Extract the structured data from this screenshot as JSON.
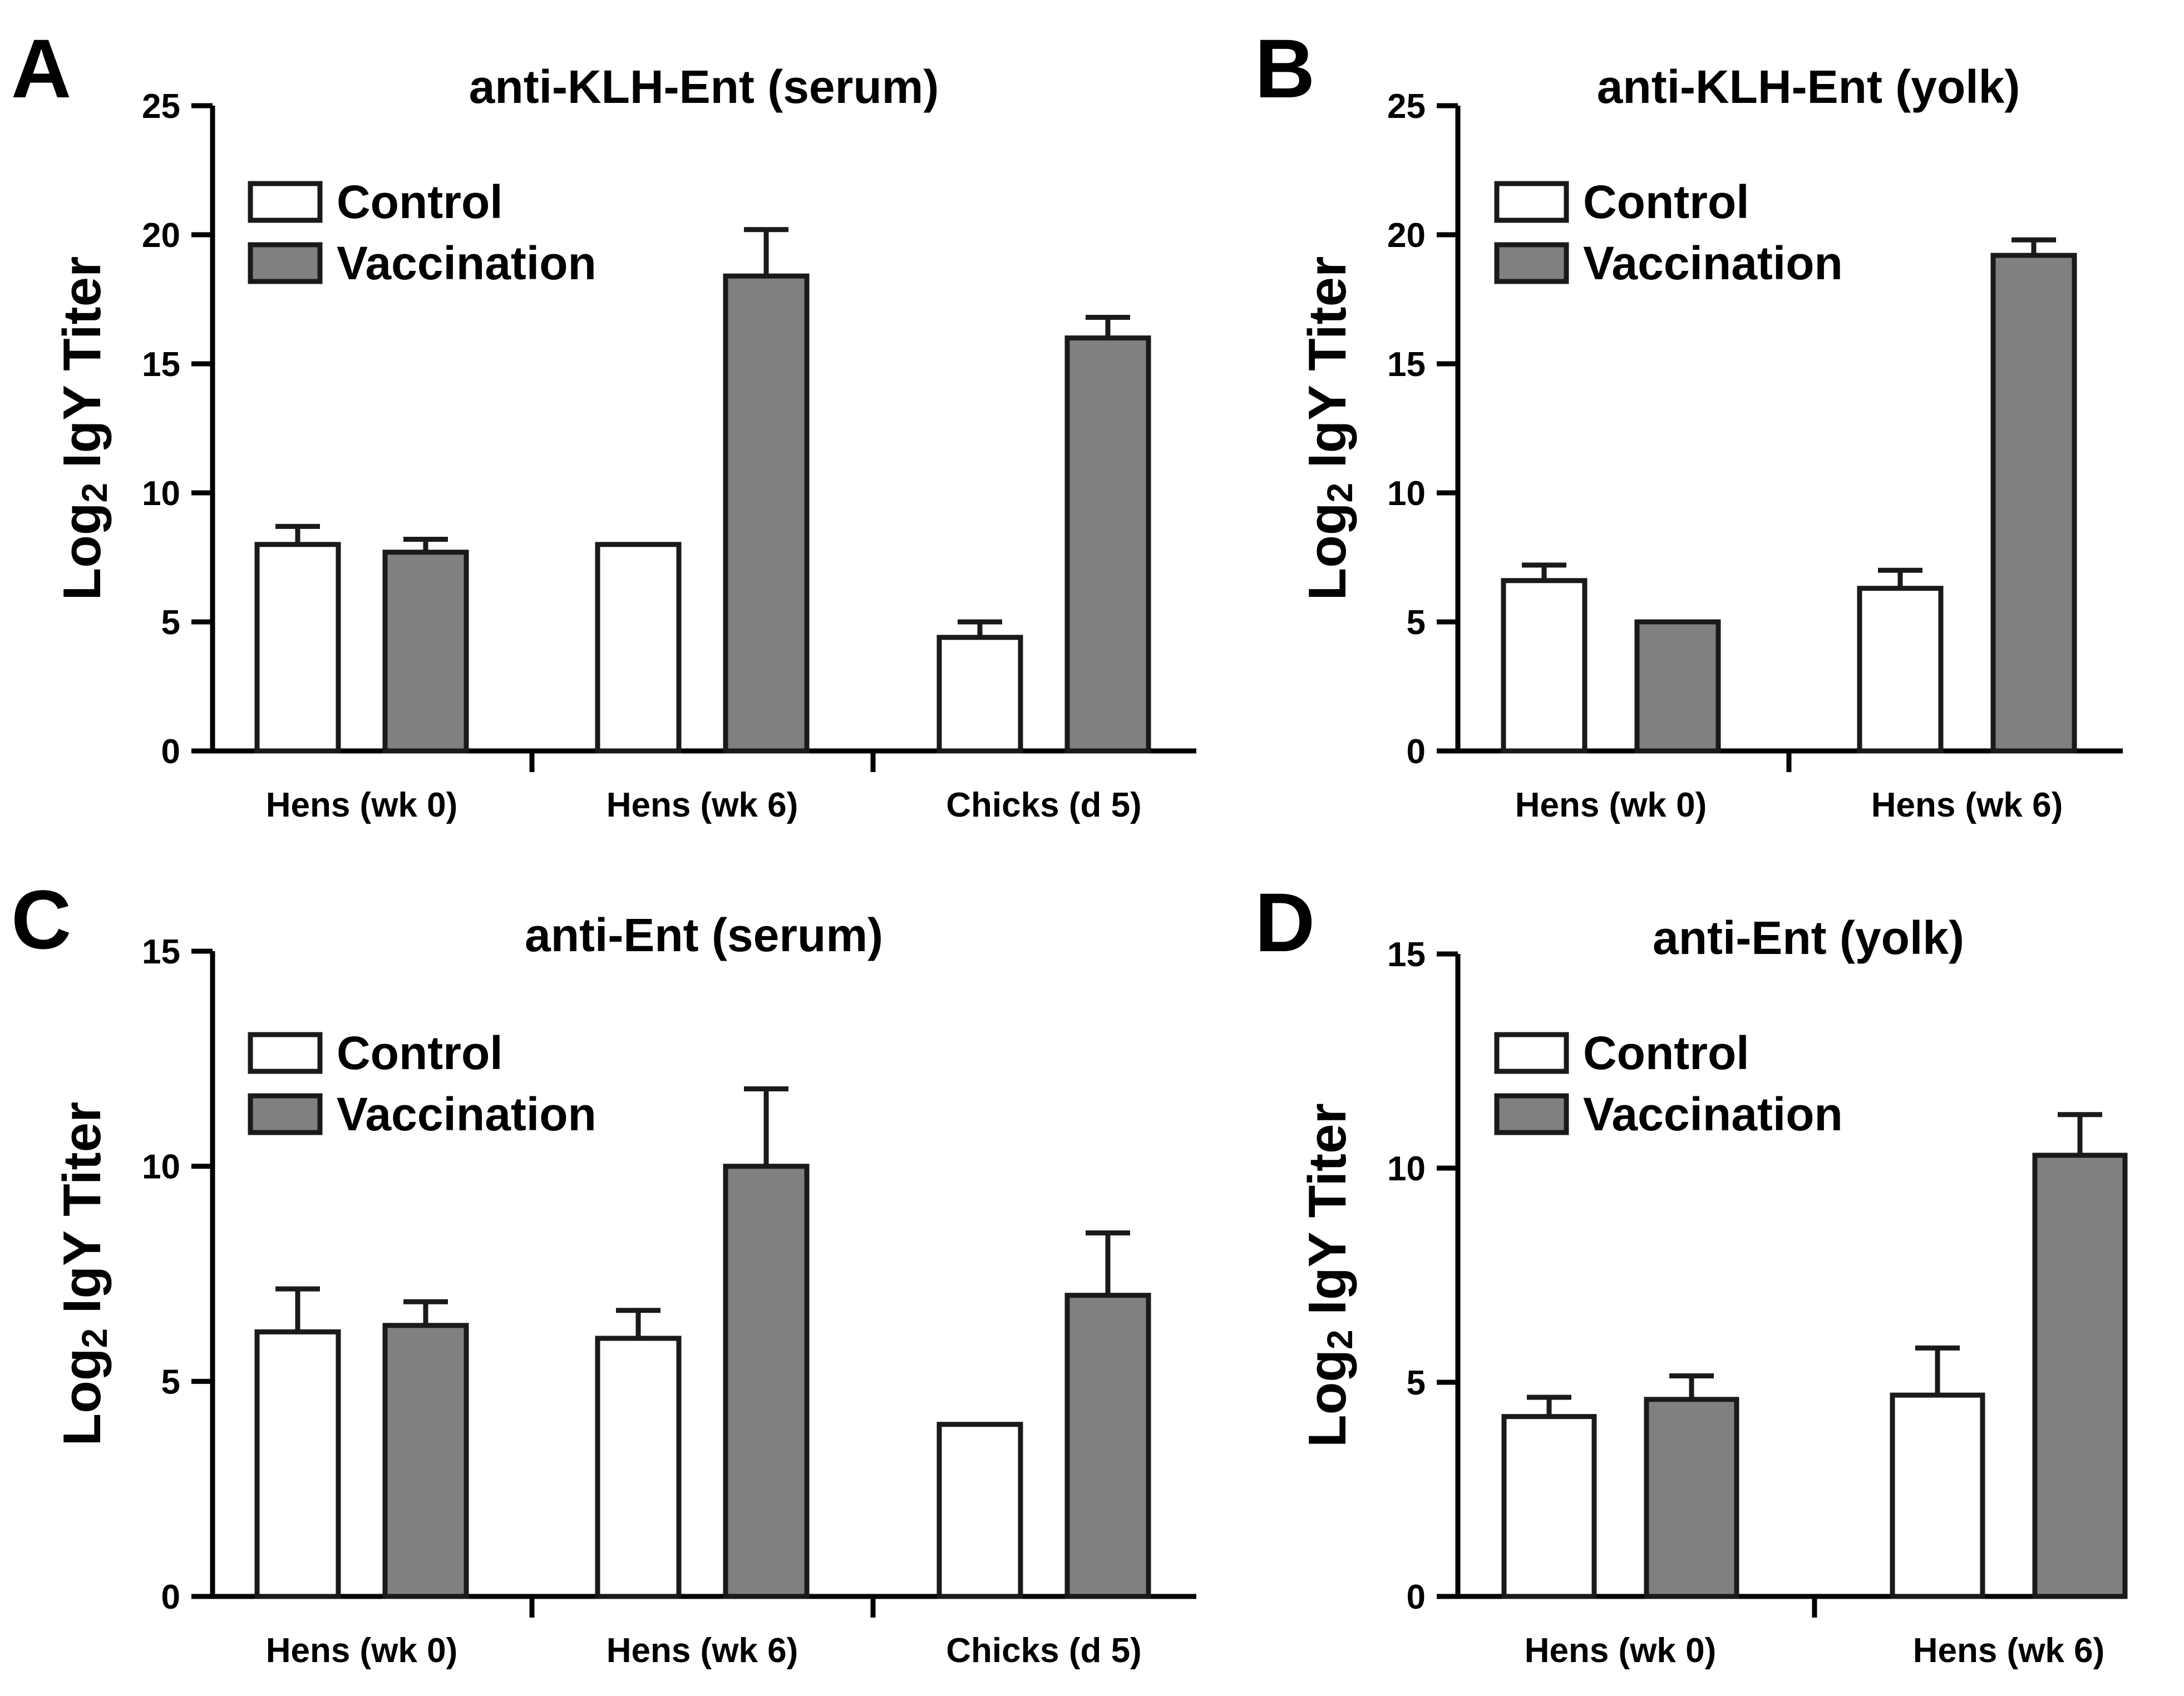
{
  "colors": {
    "control_fill": "#ffffff",
    "vaccination_fill": "#808080",
    "stroke": "#1a1a1a"
  },
  "chart_data": [
    {
      "letter": "A",
      "type": "bar",
      "title": "anti-KLH-Ent (serum)",
      "xlabel": "",
      "ylabel": "Log2 IgY Titer",
      "ylabel_main": "Log",
      "ylabel_sub": "2",
      "ylabel_rest": " IgY Titer",
      "ylim": [
        0,
        25
      ],
      "yticks": [
        0,
        5,
        10,
        15,
        20,
        25
      ],
      "ytick_labels": [
        "0",
        "5",
        "10",
        "15",
        "20",
        "25"
      ],
      "categories": [
        "Hens (wk 0)",
        "Hens (wk 6)",
        "Chicks (d 5)"
      ],
      "legend": [
        "Control",
        "Vaccination"
      ],
      "legend_position": "top-left",
      "series": [
        {
          "name": "Control",
          "values": [
            8.0,
            8.0,
            4.4
          ],
          "errors": [
            0.7,
            0.0,
            0.6
          ]
        },
        {
          "name": "Vaccination",
          "values": [
            7.7,
            18.4,
            16.0
          ],
          "errors": [
            0.5,
            1.8,
            0.8
          ]
        }
      ]
    },
    {
      "letter": "B",
      "type": "bar",
      "title": "anti-KLH-Ent (yolk)",
      "xlabel": "",
      "ylabel": "Log2 IgY Titer",
      "ylabel_main": "Log",
      "ylabel_sub": "2",
      "ylabel_rest": " IgY Titer",
      "ylim": [
        0,
        25
      ],
      "yticks": [
        0,
        5,
        10,
        15,
        20,
        25
      ],
      "ytick_labels": [
        "0",
        "5",
        "10",
        "15",
        "20",
        "25"
      ],
      "categories": [
        "Hens (wk 0)",
        "Hens (wk 6)"
      ],
      "legend": [
        "Control",
        "Vaccination"
      ],
      "legend_position": "top-left",
      "series": [
        {
          "name": "Control",
          "values": [
            6.6,
            6.3
          ],
          "errors": [
            0.6,
            0.7
          ]
        },
        {
          "name": "Vaccination",
          "values": [
            5.0,
            19.2
          ],
          "errors": [
            0.0,
            0.6
          ]
        }
      ]
    },
    {
      "letter": "C",
      "type": "bar",
      "title": "anti-Ent (serum)",
      "xlabel": "",
      "ylabel": "Log2 IgY Titer",
      "ylabel_main": "Log",
      "ylabel_sub": "2",
      "ylabel_rest": " IgY Titer",
      "ylim": [
        0,
        15
      ],
      "yticks": [
        0,
        5,
        10,
        15
      ],
      "ytick_labels": [
        "0",
        "5",
        "10",
        "15"
      ],
      "categories": [
        "Hens (wk 0)",
        "Hens (wk 6)",
        "Chicks (d 5)"
      ],
      "legend": [
        "Control",
        "Vaccination"
      ],
      "legend_position": "top-left",
      "series": [
        {
          "name": "Control",
          "values": [
            6.15,
            6.0,
            4.0
          ],
          "errors": [
            1.0,
            0.65,
            0.0
          ]
        },
        {
          "name": "Vaccination",
          "values": [
            6.3,
            10.0,
            7.0
          ],
          "errors": [
            0.55,
            1.8,
            1.45
          ]
        }
      ]
    },
    {
      "letter": "D",
      "type": "bar",
      "title": "anti-Ent (yolk)",
      "xlabel": "",
      "ylabel": "Log2 IgY Titer",
      "ylabel_main": "Log",
      "ylabel_sub": "2",
      "ylabel_rest": " IgY Titer",
      "ylim": [
        0,
        15
      ],
      "yticks": [
        0,
        5,
        10,
        15
      ],
      "ytick_labels": [
        "0",
        "5",
        "10",
        "15"
      ],
      "categories": [
        "Hens (wk 0)",
        "Hens (wk 6)"
      ],
      "legend": [
        "Control",
        "Vaccination"
      ],
      "legend_position": "top-left",
      "series": [
        {
          "name": "Control",
          "values": [
            4.2,
            4.7
          ],
          "errors": [
            0.45,
            1.1
          ]
        },
        {
          "name": "Vaccination",
          "values": [
            4.6,
            10.3
          ],
          "errors": [
            0.55,
            0.95
          ]
        }
      ]
    }
  ]
}
